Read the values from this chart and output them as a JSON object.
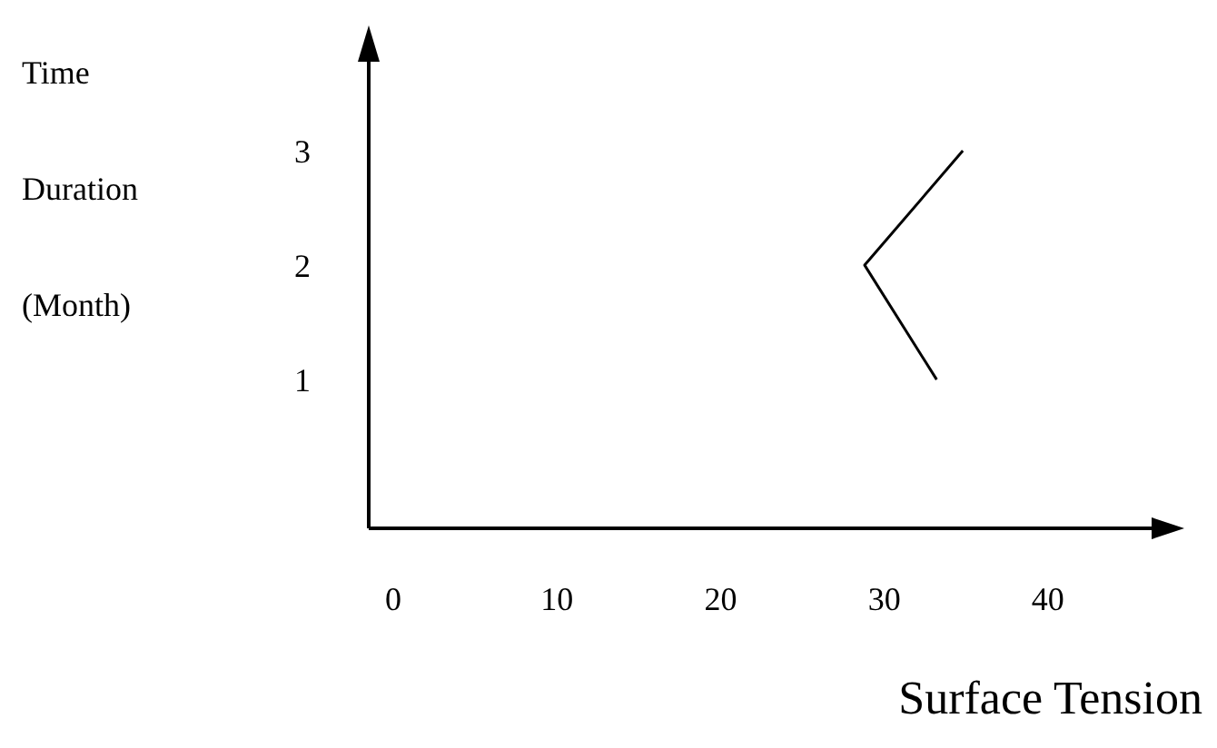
{
  "chart_data": {
    "type": "line",
    "xlabel": "Surface Tension",
    "ylabel": "Time Duration (Month)",
    "x": [
      33.2,
      28.8,
      34.8
    ],
    "values": [
      1,
      2,
      3
    ],
    "color": "#000000",
    "marker": "none",
    "line_style": "solid",
    "grid": false,
    "legend": false,
    "xlim": [
      -1.5,
      47
    ],
    "xticks": [
      0,
      10,
      20,
      30,
      40
    ],
    "ylim": [
      -0.3,
      4
    ],
    "yticks": [
      1,
      2,
      3
    ]
  }
}
